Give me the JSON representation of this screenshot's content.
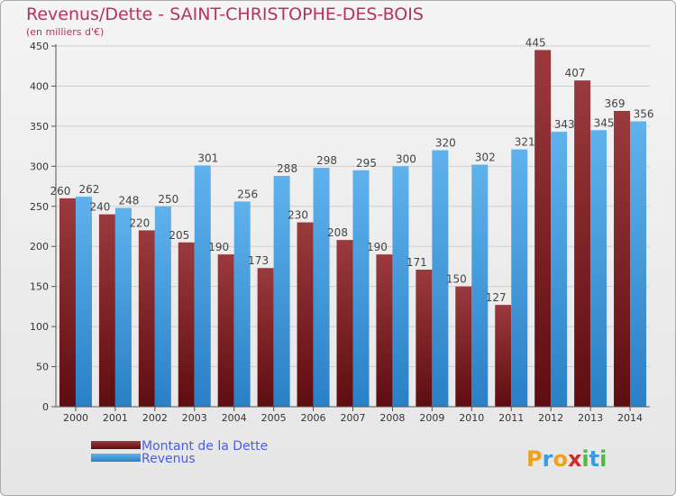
{
  "chart_data": {
    "type": "bar",
    "title": "Revenus/Dette - SAINT-CHRISTOPHE-DES-BOIS",
    "subtitle": "(en milliers d'€)",
    "categories": [
      "2000",
      "2001",
      "2002",
      "2003",
      "2004",
      "2005",
      "2006",
      "2007",
      "2008",
      "2009",
      "2010",
      "2011",
      "2012",
      "2013",
      "2014"
    ],
    "series": [
      {
        "name": "Montant de la Dette",
        "color": "#7a1e22",
        "values": [
          260,
          240,
          220,
          205,
          190,
          173,
          230,
          208,
          190,
          171,
          150,
          127,
          445,
          407,
          369
        ]
      },
      {
        "name": "Revenus",
        "color": "#3d9be0",
        "values": [
          262,
          248,
          250,
          301,
          256,
          288,
          298,
          295,
          300,
          320,
          302,
          321,
          343,
          345,
          356
        ]
      }
    ],
    "ylim": [
      0,
      450
    ],
    "yticks": [
      0,
      50,
      100,
      150,
      200,
      250,
      300,
      350,
      400,
      450
    ],
    "grid": true,
    "legend_position": "bottom-left"
  },
  "logo": {
    "text": "Proxiti",
    "letters": [
      "P",
      "r",
      "o",
      "x",
      "i",
      "t",
      "i"
    ],
    "colors": [
      "#f0a020",
      "#3a9be0",
      "#f0a020",
      "#d22a2a",
      "#4fb848",
      "#3a9be0",
      "#4fb848"
    ]
  }
}
